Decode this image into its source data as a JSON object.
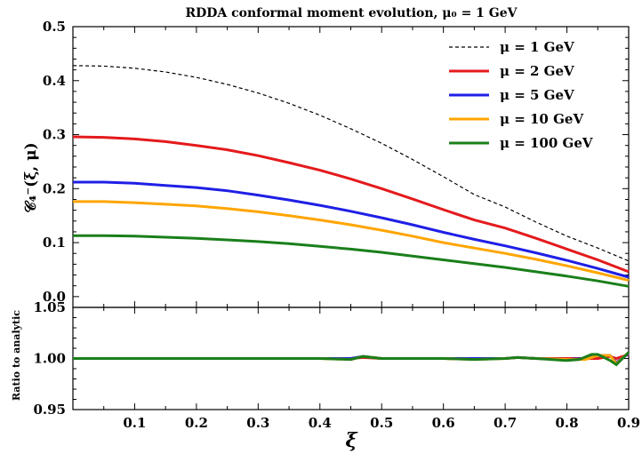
{
  "chart_data": {
    "type": "line",
    "title": "RDDA conformal moment evolution, μ₀ = 1 GeV",
    "xlabel": "ξ",
    "top_panel": {
      "ylabel": "𝒞₄⁻(ξ, μ)",
      "xlim": [
        0.0,
        0.9
      ],
      "ylim": [
        -0.02,
        0.5
      ],
      "yticks": [
        "0.0",
        "0.1",
        "0.2",
        "0.3",
        "0.4",
        "0.5"
      ],
      "ytick_values": [
        0.0,
        0.1,
        0.2,
        0.3,
        0.4,
        0.5
      ],
      "legend_position": "top-right",
      "series": [
        {
          "name": "μ = 1 GeV",
          "color": "#000000",
          "style": "dashed",
          "x": [
            0.0,
            0.05,
            0.1,
            0.15,
            0.2,
            0.25,
            0.3,
            0.35,
            0.4,
            0.45,
            0.5,
            0.55,
            0.6,
            0.65,
            0.7,
            0.75,
            0.8,
            0.85,
            0.9
          ],
          "y": [
            0.428,
            0.427,
            0.423,
            0.416,
            0.406,
            0.393,
            0.377,
            0.358,
            0.336,
            0.311,
            0.284,
            0.254,
            0.222,
            0.189,
            0.166,
            0.138,
            0.112,
            0.09,
            0.066
          ]
        },
        {
          "name": "μ = 2 GeV",
          "color": "#e41a1c",
          "style": "solid",
          "x": [
            0.0,
            0.05,
            0.1,
            0.15,
            0.2,
            0.25,
            0.3,
            0.35,
            0.4,
            0.45,
            0.5,
            0.55,
            0.6,
            0.65,
            0.7,
            0.75,
            0.8,
            0.85,
            0.9
          ],
          "y": [
            0.296,
            0.295,
            0.292,
            0.287,
            0.28,
            0.272,
            0.261,
            0.248,
            0.234,
            0.218,
            0.2,
            0.181,
            0.161,
            0.142,
            0.127,
            0.108,
            0.088,
            0.068,
            0.046
          ]
        },
        {
          "name": "μ = 5 GeV",
          "color": "#1f1fe6",
          "style": "solid",
          "x": [
            0.0,
            0.05,
            0.1,
            0.15,
            0.2,
            0.25,
            0.3,
            0.35,
            0.4,
            0.45,
            0.5,
            0.55,
            0.6,
            0.65,
            0.7,
            0.75,
            0.8,
            0.85,
            0.9
          ],
          "y": [
            0.212,
            0.212,
            0.21,
            0.206,
            0.202,
            0.196,
            0.188,
            0.179,
            0.169,
            0.158,
            0.146,
            0.133,
            0.119,
            0.106,
            0.094,
            0.081,
            0.067,
            0.052,
            0.036
          ]
        },
        {
          "name": "μ = 10 GeV",
          "color": "#ffa500",
          "style": "solid",
          "x": [
            0.0,
            0.05,
            0.1,
            0.15,
            0.2,
            0.25,
            0.3,
            0.35,
            0.4,
            0.45,
            0.5,
            0.55,
            0.6,
            0.65,
            0.7,
            0.75,
            0.8,
            0.85,
            0.9
          ],
          "y": [
            0.176,
            0.176,
            0.174,
            0.171,
            0.168,
            0.163,
            0.157,
            0.15,
            0.142,
            0.133,
            0.123,
            0.112,
            0.1,
            0.09,
            0.08,
            0.069,
            0.057,
            0.044,
            0.03
          ]
        },
        {
          "name": "μ = 100 GeV",
          "color": "#1a7f1a",
          "style": "solid",
          "x": [
            0.0,
            0.05,
            0.1,
            0.15,
            0.2,
            0.25,
            0.3,
            0.35,
            0.4,
            0.45,
            0.5,
            0.55,
            0.6,
            0.65,
            0.7,
            0.75,
            0.8,
            0.85,
            0.9
          ],
          "y": [
            0.113,
            0.113,
            0.112,
            0.11,
            0.108,
            0.105,
            0.102,
            0.098,
            0.093,
            0.088,
            0.082,
            0.075,
            0.068,
            0.061,
            0.054,
            0.046,
            0.038,
            0.029,
            0.019
          ]
        }
      ]
    },
    "bottom_panel": {
      "ylabel": "Ratio to analytic",
      "xlim": [
        0.0,
        0.9
      ],
      "ylim": [
        0.95,
        1.05
      ],
      "yticks": [
        "0.95",
        "1.00",
        "1.05"
      ],
      "ytick_values": [
        0.95,
        1.0,
        1.05
      ],
      "series": [
        {
          "name": "μ = 2 GeV",
          "color": "#e41a1c",
          "x": [
            0.0,
            0.1,
            0.2,
            0.3,
            0.4,
            0.45,
            0.47,
            0.5,
            0.6,
            0.65,
            0.7,
            0.72,
            0.75,
            0.8,
            0.83,
            0.85,
            0.87,
            0.88,
            0.9
          ],
          "y": [
            1.0,
            1.0,
            1.0,
            1.0,
            1.0,
            1.0,
            1.001,
            1.0,
            1.0,
            1.0,
            1.0,
            1.001,
            1.0,
            1.0,
            1.0,
            1.0,
            1.002,
            1.0,
            1.004
          ]
        },
        {
          "name": "μ = 5 GeV",
          "color": "#1f1fe6",
          "x": [
            0.0,
            0.1,
            0.2,
            0.3,
            0.4,
            0.45,
            0.47,
            0.5,
            0.6,
            0.65,
            0.7,
            0.72,
            0.75,
            0.8,
            0.83,
            0.85,
            0.87,
            0.88,
            0.9
          ],
          "y": [
            1.0,
            1.0,
            1.0,
            1.0,
            1.0,
            1.0,
            1.002,
            1.0,
            1.0,
            1.0,
            1.0,
            1.001,
            1.0,
            0.999,
            1.0,
            1.003,
            1.003,
            0.996,
            1.005
          ]
        },
        {
          "name": "μ = 10 GeV",
          "color": "#ffa500",
          "x": [
            0.0,
            0.1,
            0.2,
            0.3,
            0.4,
            0.45,
            0.47,
            0.5,
            0.6,
            0.65,
            0.7,
            0.72,
            0.75,
            0.8,
            0.83,
            0.85,
            0.87,
            0.88,
            0.9
          ],
          "y": [
            1.0,
            1.0,
            1.0,
            1.0,
            1.0,
            0.999,
            1.002,
            1.0,
            1.0,
            0.999,
            1.0,
            1.001,
            1.0,
            0.999,
            0.999,
            1.003,
            1.003,
            0.995,
            1.006
          ]
        },
        {
          "name": "μ = 100 GeV",
          "color": "#1a7f1a",
          "x": [
            0.0,
            0.1,
            0.2,
            0.3,
            0.4,
            0.45,
            0.47,
            0.5,
            0.6,
            0.65,
            0.7,
            0.72,
            0.75,
            0.8,
            0.82,
            0.84,
            0.85,
            0.87,
            0.88,
            0.9
          ],
          "y": [
            1.0,
            1.0,
            1.0,
            1.0,
            1.0,
            0.999,
            1.002,
            1.0,
            1.0,
            0.999,
            1.0,
            1.001,
            1.0,
            0.998,
            0.999,
            1.004,
            1.004,
            0.998,
            0.994,
            1.006
          ]
        }
      ]
    },
    "xticks": [
      "0.1",
      "0.2",
      "0.3",
      "0.4",
      "0.5",
      "0.6",
      "0.7",
      "0.8",
      "0.9"
    ],
    "xtick_values": [
      0.1,
      0.2,
      0.3,
      0.4,
      0.5,
      0.6,
      0.7,
      0.8,
      0.9
    ]
  }
}
